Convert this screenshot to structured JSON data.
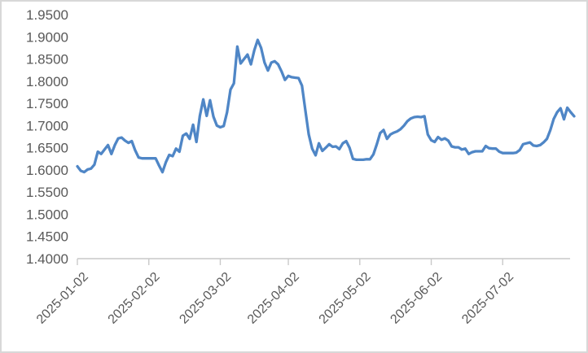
{
  "chart_data": {
    "type": "line",
    "title": "",
    "xlabel": "",
    "ylabel": "",
    "grid": "off",
    "legend": "none",
    "ylim": [
      1.4,
      1.95
    ],
    "y_tick_labels": [
      "1.9500",
      "1.9000",
      "1.8500",
      "1.8000",
      "1.7500",
      "1.7000",
      "1.6500",
      "1.6000",
      "1.5500",
      "1.5000",
      "1.4500",
      "1.4000"
    ],
    "x_tick_labels": [
      "2025-01-02",
      "2025-02-02",
      "2025-03-02",
      "2025-04-02",
      "2025-05-02",
      "2025-06-02",
      "2025-07-02"
    ],
    "x_tick_indices": [
      0,
      21,
      42,
      62,
      83,
      104,
      125
    ],
    "values": [
      1.608,
      1.598,
      1.595,
      1.601,
      1.603,
      1.612,
      1.641,
      1.636,
      1.646,
      1.656,
      1.636,
      1.656,
      1.671,
      1.673,
      1.666,
      1.661,
      1.665,
      1.644,
      1.628,
      1.626,
      1.626,
      1.626,
      1.626,
      1.626,
      1.61,
      1.595,
      1.617,
      1.634,
      1.631,
      1.648,
      1.641,
      1.677,
      1.682,
      1.67,
      1.702,
      1.663,
      1.722,
      1.759,
      1.722,
      1.757,
      1.72,
      1.7,
      1.696,
      1.699,
      1.73,
      1.781,
      1.795,
      1.878,
      1.84,
      1.85,
      1.86,
      1.838,
      1.87,
      1.893,
      1.875,
      1.842,
      1.824,
      1.842,
      1.845,
      1.838,
      1.822,
      1.803,
      1.812,
      1.809,
      1.808,
      1.807,
      1.79,
      1.735,
      1.68,
      1.648,
      1.633,
      1.66,
      1.643,
      1.65,
      1.658,
      1.652,
      1.653,
      1.647,
      1.66,
      1.665,
      1.65,
      1.625,
      1.623,
      1.623,
      1.623,
      1.624,
      1.624,
      1.635,
      1.658,
      1.683,
      1.69,
      1.67,
      1.68,
      1.684,
      1.687,
      1.692,
      1.7,
      1.71,
      1.716,
      1.719,
      1.72,
      1.719,
      1.721,
      1.68,
      1.667,
      1.663,
      1.674,
      1.668,
      1.671,
      1.666,
      1.653,
      1.651,
      1.651,
      1.646,
      1.648,
      1.636,
      1.64,
      1.642,
      1.642,
      1.642,
      1.654,
      1.649,
      1.648,
      1.648,
      1.641,
      1.638,
      1.638,
      1.638,
      1.638,
      1.639,
      1.645,
      1.658,
      1.66,
      1.662,
      1.655,
      1.654,
      1.656,
      1.662,
      1.67,
      1.69,
      1.715,
      1.73,
      1.739,
      1.714,
      1.74,
      1.73,
      1.721
    ],
    "colors": {
      "line": "#4F86C6",
      "axis": "#C9C9C9",
      "tick_label": "#595959",
      "frame_border": "#D8D8D8",
      "background": "#FFFFFF"
    }
  }
}
